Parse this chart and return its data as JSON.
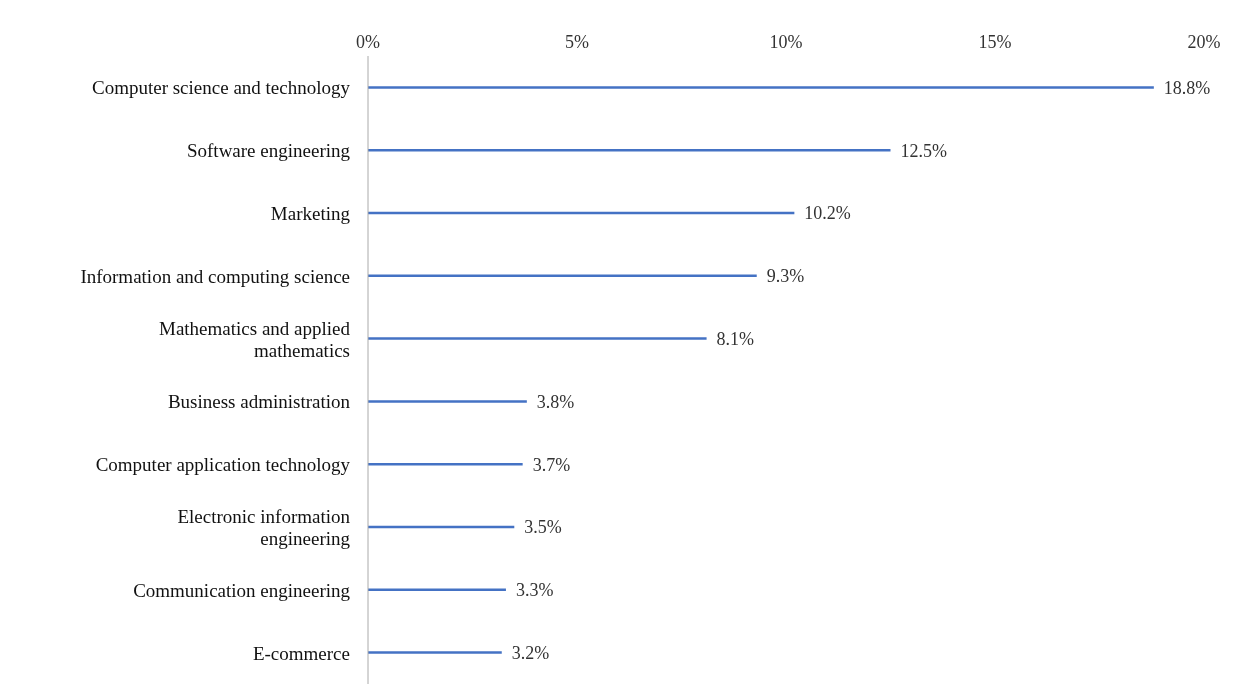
{
  "chart_data": {
    "type": "bar",
    "orientation": "horizontal",
    "categories": [
      "Computer science and technology",
      "Software engineering",
      "Marketing",
      "Information and computing science",
      "Mathematics and applied mathematics",
      "Business administration",
      "Computer application technology",
      "Electronic information engineering",
      "Communication engineering",
      "E-commerce"
    ],
    "values": [
      18.8,
      12.5,
      10.2,
      9.3,
      8.1,
      3.8,
      3.7,
      3.5,
      3.3,
      3.2
    ],
    "value_labels": [
      "18.8%",
      "12.5%",
      "10.2%",
      "9.3%",
      "8.1%",
      "3.8%",
      "3.7%",
      "3.5%",
      "3.3%",
      "3.2%"
    ],
    "color": "#4472c4",
    "xlim": [
      0,
      20
    ],
    "xticks": [
      {
        "value": 0,
        "label": "0%"
      },
      {
        "value": 5,
        "label": "5%"
      },
      {
        "value": 10,
        "label": "10%"
      },
      {
        "value": 15,
        "label": "15%"
      },
      {
        "value": 20,
        "label": "20%"
      }
    ],
    "grid": false,
    "legend": false
  }
}
